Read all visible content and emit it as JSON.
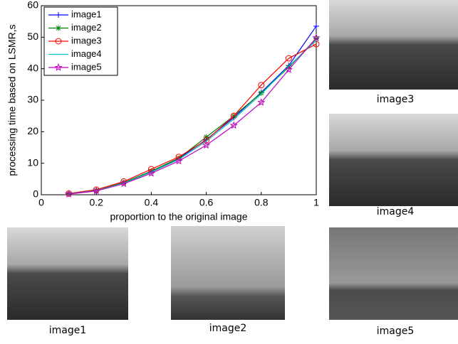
{
  "chart_data": {
    "type": "line",
    "x": [
      0.1,
      0.2,
      0.3,
      0.4,
      0.5,
      0.6,
      0.7,
      0.8,
      0.9,
      1
    ],
    "series": [
      {
        "name": "image1",
        "color": "#0000ff",
        "marker": "+",
        "values": [
          0.3,
          1.3,
          3.8,
          7.3,
          11.5,
          17.5,
          24.5,
          32.5,
          41,
          53.5
        ]
      },
      {
        "name": "image2",
        "color": "#008000",
        "marker": "*",
        "values": [
          0.3,
          1.4,
          3.9,
          7.5,
          11.6,
          18.3,
          25,
          32.3,
          40.5,
          49.5
        ]
      },
      {
        "name": "image3",
        "color": "#ff0000",
        "marker": "o",
        "values": [
          0.4,
          1.6,
          4.2,
          8.1,
          12,
          17.3,
          25,
          34.8,
          43.3,
          47.8
        ]
      },
      {
        "name": "image4",
        "color": "#00bfbf",
        "marker": "none",
        "values": [
          0.3,
          1.3,
          3.7,
          7.2,
          11.2,
          17,
          24,
          32,
          40.8,
          49
        ]
      },
      {
        "name": "image5",
        "color": "#bf00bf",
        "marker": "pentagram",
        "values": [
          0.2,
          1.2,
          3.5,
          6.8,
          10.7,
          15.7,
          22,
          29.3,
          39.7,
          49.8
        ]
      }
    ],
    "xlabel": "proportion to the original image",
    "ylabel": "processing time based on LSMR,s",
    "xlim": [
      0,
      1
    ],
    "xticks": [
      0,
      0.2,
      0.4,
      0.6,
      0.8,
      1
    ],
    "ylim": [
      0,
      60
    ],
    "yticks": [
      0,
      10,
      20,
      30,
      40,
      50,
      60
    ],
    "legend": "upper left"
  },
  "panels": [
    {
      "caption": "image3"
    },
    {
      "caption": "image4"
    },
    {
      "caption": "image1"
    },
    {
      "caption": "image2"
    },
    {
      "caption": "image5"
    }
  ]
}
